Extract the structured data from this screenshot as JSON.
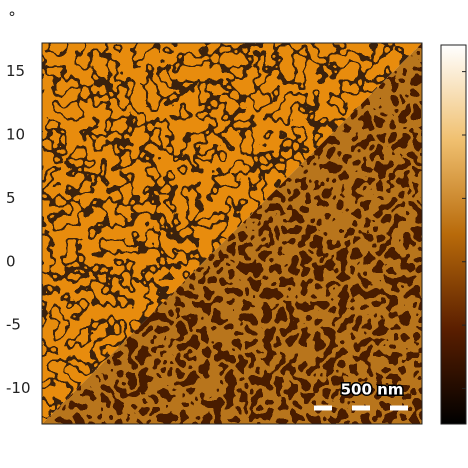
{
  "chart_data": {
    "type": "heatmap",
    "unit_label": "°",
    "ylim": [
      -12.8,
      17.1
    ],
    "yticks": [
      15,
      10,
      5,
      0,
      -5,
      -10
    ],
    "scale_bar": "500 nm",
    "colormap": [
      "#000000",
      "#5a1e00",
      "#b86a0a",
      "#f0c070",
      "#ffffff"
    ]
  }
}
